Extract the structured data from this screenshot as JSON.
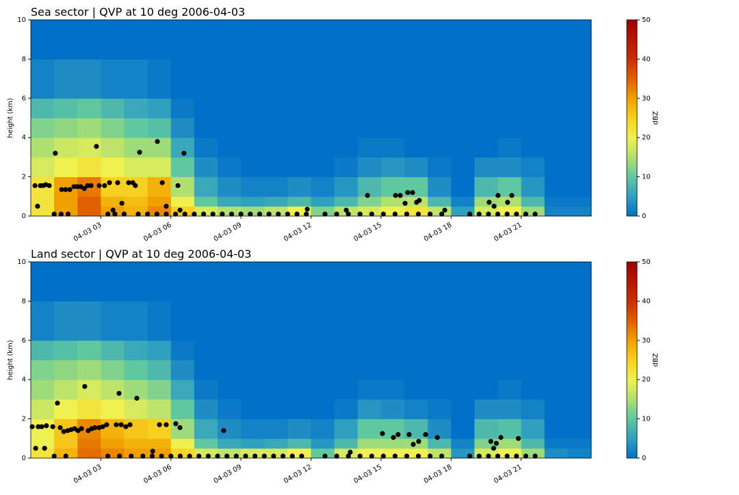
{
  "chart_data": [
    {
      "type": "heatmap",
      "title": "Sea sector  |  QVP at 10 deg 2006-04-03",
      "ylabel": "height (km)",
      "xlim": [
        0,
        24
      ],
      "ylim": [
        0,
        10
      ],
      "yticks": [
        0,
        2,
        4,
        6,
        8,
        10
      ],
      "xticks": [
        {
          "value": 3,
          "label": "04-03 03"
        },
        {
          "value": 6,
          "label": "04-03 06"
        },
        {
          "value": 9,
          "label": "04-03 09"
        },
        {
          "value": 12,
          "label": "04-03 12"
        },
        {
          "value": 15,
          "label": "04-03 15"
        },
        {
          "value": 18,
          "label": "04-03 18"
        },
        {
          "value": 21,
          "label": "04-03 21"
        }
      ],
      "x_edges": [
        0,
        1,
        2,
        3,
        4,
        5,
        6,
        7,
        8,
        9,
        10,
        11,
        12,
        13,
        14,
        15,
        16,
        17,
        18,
        19,
        20,
        21,
        22,
        23,
        24
      ],
      "y_edges": [
        0,
        0.5,
        1,
        2,
        3,
        4,
        5,
        6,
        8,
        10
      ],
      "z": [
        [
          22,
          30,
          35,
          30,
          28,
          32,
          25,
          18,
          15,
          14,
          16,
          20,
          12,
          16,
          18,
          20,
          22,
          16,
          5,
          18,
          20,
          14,
          2,
          2
        ],
        [
          22,
          30,
          35,
          28,
          27,
          30,
          20,
          10,
          6,
          5,
          6,
          8,
          5,
          8,
          12,
          15,
          16,
          8,
          2,
          14,
          15,
          8,
          1,
          1
        ],
        [
          22,
          30,
          33,
          25,
          25,
          28,
          15,
          6,
          3,
          2,
          2,
          3,
          2,
          4,
          8,
          10,
          10,
          3,
          0,
          8,
          10,
          4,
          0,
          0
        ],
        [
          18,
          20,
          22,
          20,
          18,
          18,
          10,
          3,
          1,
          0,
          0,
          0,
          0,
          1,
          3,
          4,
          3,
          1,
          0,
          3,
          3,
          2,
          0,
          0
        ],
        [
          15,
          17,
          18,
          16,
          14,
          14,
          6,
          1,
          0,
          0,
          0,
          0,
          0,
          0,
          1,
          1,
          0,
          0,
          0,
          0,
          1,
          0,
          0,
          0
        ],
        [
          12,
          13,
          14,
          12,
          10,
          9,
          3,
          0,
          0,
          0,
          0,
          0,
          0,
          0,
          0,
          0,
          0,
          0,
          0,
          0,
          0,
          0,
          0,
          0
        ],
        [
          8,
          9,
          10,
          8,
          6,
          5,
          1,
          0,
          0,
          0,
          0,
          0,
          0,
          0,
          0,
          0,
          0,
          0,
          0,
          0,
          0,
          0,
          0,
          0
        ],
        [
          2,
          3,
          3,
          2,
          2,
          1,
          0,
          0,
          0,
          0,
          0,
          0,
          0,
          0,
          0,
          0,
          0,
          0,
          0,
          0,
          0,
          0,
          0,
          0
        ],
        [
          0,
          0,
          0,
          0,
          0,
          0,
          0,
          0,
          0,
          0,
          0,
          0,
          0,
          0,
          0,
          0,
          0,
          0,
          0,
          0,
          0,
          0,
          0,
          0
        ]
      ],
      "clim": [
        0,
        50
      ],
      "cticks": [
        0,
        10,
        20,
        30,
        40,
        50
      ],
      "clabel": "dBZ",
      "scatter": {
        "color": "#000000",
        "x": [
          0.18,
          0.29,
          0.41,
          0.53,
          0.64,
          0.79,
          1.05,
          1.32,
          1.49,
          1.67,
          1.85,
          1.99,
          2.14,
          2.29,
          2.43,
          2.58,
          2.81,
          2.93,
          3.16,
          3.37,
          3.52,
          3.72,
          3.9,
          4.19,
          4.37,
          4.48,
          4.66,
          5.42,
          5.63,
          5.8,
          6.3,
          6.39,
          6.56,
          11.84,
          13.51,
          14.42,
          15.62,
          15.82,
          16.03,
          16.14,
          16.35,
          16.52,
          16.64,
          17.73,
          19.63,
          19.84,
          20.01,
          20.42,
          20.6,
          1.0,
          1.3,
          1.6,
          3.3,
          3.6,
          4.0,
          4.6,
          5.0,
          5.4,
          5.8,
          6.2,
          6.6,
          7.0,
          7.4,
          7.8,
          8.2,
          8.6,
          9.0,
          9.4,
          9.8,
          10.2,
          10.6,
          11.0,
          11.4,
          11.8,
          12.6,
          13.1,
          13.6,
          14.1,
          14.6,
          15.1,
          15.6,
          16.1,
          16.6,
          17.1,
          17.6,
          18.8,
          19.2,
          19.6,
          20.0,
          20.4,
          20.8,
          21.2,
          21.6
        ],
        "y": [
          1.55,
          0.5,
          1.55,
          1.55,
          1.6,
          1.55,
          3.2,
          1.35,
          1.35,
          1.35,
          1.5,
          1.5,
          1.5,
          1.4,
          1.55,
          1.55,
          3.55,
          1.55,
          1.55,
          1.7,
          0.3,
          1.7,
          0.65,
          1.7,
          1.7,
          1.55,
          3.25,
          3.8,
          1.7,
          0.5,
          1.55,
          0.3,
          3.2,
          0.35,
          0.3,
          1.05,
          1.05,
          1.05,
          0.65,
          1.2,
          1.2,
          0.7,
          0.8,
          0.3,
          0.7,
          0.5,
          1.05,
          0.7,
          1.05,
          0.1,
          0.1,
          0.1,
          0.1,
          0.1,
          0.1,
          0.1,
          0.1,
          0.1,
          0.1,
          0.1,
          0.1,
          0.1,
          0.1,
          0.1,
          0.1,
          0.1,
          0.1,
          0.1,
          0.1,
          0.1,
          0.1,
          0.1,
          0.1,
          0.1,
          0.1,
          0.1,
          0.1,
          0.1,
          0.1,
          0.1,
          0.1,
          0.1,
          0.1,
          0.1,
          0.1,
          0.1,
          0.1,
          0.1,
          0.1,
          0.1,
          0.1,
          0.1,
          0.1
        ]
      }
    },
    {
      "type": "heatmap",
      "title": "Land sector  |  QVP at 10 deg 2006-04-03",
      "ylabel": "height (km)",
      "xlim": [
        0,
        24
      ],
      "ylim": [
        0,
        10
      ],
      "yticks": [
        0,
        2,
        4,
        6,
        8,
        10
      ],
      "xticks": [
        {
          "value": 3,
          "label": "04-03 03"
        },
        {
          "value": 6,
          "label": "04-03 06"
        },
        {
          "value": 9,
          "label": "04-03 09"
        },
        {
          "value": 12,
          "label": "04-03 12"
        },
        {
          "value": 15,
          "label": "04-03 15"
        },
        {
          "value": 18,
          "label": "04-03 18"
        },
        {
          "value": 21,
          "label": "04-03 21"
        }
      ],
      "x_edges": [
        0,
        1,
        2,
        3,
        4,
        5,
        6,
        7,
        8,
        9,
        10,
        11,
        12,
        13,
        14,
        15,
        16,
        17,
        18,
        19,
        20,
        21,
        22,
        23,
        24
      ],
      "y_edges": [
        0,
        0.5,
        1,
        2,
        3,
        4,
        5,
        6,
        8,
        10
      ],
      "z": [
        [
          22,
          28,
          34,
          32,
          30,
          30,
          24,
          18,
          16,
          18,
          18,
          20,
          10,
          18,
          20,
          20,
          20,
          16,
          4,
          18,
          20,
          14,
          3,
          2
        ],
        [
          20,
          26,
          33,
          30,
          28,
          28,
          20,
          10,
          6,
          5,
          6,
          8,
          4,
          8,
          14,
          14,
          14,
          8,
          2,
          12,
          14,
          8,
          1,
          1
        ],
        [
          20,
          26,
          32,
          28,
          26,
          25,
          14,
          6,
          3,
          2,
          2,
          3,
          2,
          5,
          10,
          10,
          8,
          3,
          0,
          8,
          9,
          5,
          0,
          0
        ],
        [
          17,
          20,
          22,
          20,
          18,
          16,
          10,
          3,
          1,
          0,
          0,
          0,
          0,
          1,
          4,
          3,
          2,
          1,
          0,
          3,
          3,
          2,
          0,
          0
        ],
        [
          14,
          16,
          18,
          16,
          14,
          12,
          6,
          1,
          0,
          0,
          0,
          0,
          0,
          0,
          1,
          1,
          0,
          0,
          0,
          0,
          1,
          0,
          0,
          0
        ],
        [
          12,
          13,
          14,
          12,
          10,
          8,
          3,
          0,
          0,
          0,
          0,
          0,
          0,
          0,
          0,
          0,
          0,
          0,
          0,
          0,
          0,
          0,
          0,
          0
        ],
        [
          8,
          9,
          10,
          8,
          6,
          5,
          1,
          0,
          0,
          0,
          0,
          0,
          0,
          0,
          0,
          0,
          0,
          0,
          0,
          0,
          0,
          0,
          0,
          0
        ],
        [
          2,
          3,
          3,
          2,
          2,
          1,
          0,
          0,
          0,
          0,
          0,
          0,
          0,
          0,
          0,
          0,
          0,
          0,
          0,
          0,
          0,
          0,
          0,
          0
        ],
        [
          0,
          0,
          0,
          0,
          0,
          0,
          0,
          0,
          0,
          0,
          0,
          0,
          0,
          0,
          0,
          0,
          0,
          0,
          0,
          0,
          0,
          0,
          0,
          0
        ]
      ],
      "clim": [
        0,
        50
      ],
      "cticks": [
        0,
        10,
        20,
        30,
        40,
        50
      ],
      "clabel": "dBZ",
      "scatter": {
        "color": "#000000",
        "x": [
          0.06,
          0.21,
          0.32,
          0.47,
          0.59,
          0.67,
          0.94,
          1.14,
          1.26,
          1.41,
          1.58,
          1.73,
          1.88,
          2.02,
          2.17,
          2.31,
          2.46,
          2.61,
          2.75,
          2.93,
          3.08,
          3.25,
          3.66,
          3.78,
          3.87,
          4.07,
          4.25,
          4.54,
          5.22,
          5.51,
          5.8,
          6.21,
          6.39,
          8.26,
          13.68,
          15.06,
          15.53,
          15.73,
          16.2,
          16.38,
          16.61,
          16.91,
          17.41,
          19.7,
          19.82,
          19.94,
          20.13,
          20.88,
          1.0,
          1.5,
          3.3,
          3.8,
          4.3,
          4.8,
          5.2,
          5.6,
          6.0,
          6.4,
          6.8,
          7.2,
          7.6,
          8.0,
          8.4,
          8.8,
          9.2,
          9.6,
          10.0,
          10.4,
          10.8,
          11.2,
          11.6,
          12.6,
          13.1,
          13.6,
          14.1,
          14.6,
          15.1,
          15.6,
          16.1,
          16.6,
          17.1,
          17.6,
          18.8,
          19.2,
          19.6,
          20.0,
          20.4,
          20.8,
          21.2,
          21.6
        ],
        "y": [
          1.6,
          0.5,
          1.6,
          1.6,
          0.5,
          1.65,
          1.6,
          2.8,
          1.55,
          1.35,
          1.4,
          1.45,
          1.5,
          1.4,
          1.5,
          3.65,
          1.4,
          1.5,
          1.55,
          1.55,
          1.6,
          1.7,
          1.7,
          3.3,
          1.7,
          1.6,
          1.7,
          3.05,
          0.35,
          1.7,
          1.7,
          1.75,
          1.55,
          1.4,
          0.3,
          1.25,
          1.05,
          1.2,
          1.2,
          0.7,
          0.85,
          1.2,
          1.05,
          0.85,
          0.5,
          0.75,
          1.05,
          1.0,
          0.1,
          0.1,
          0.1,
          0.1,
          0.1,
          0.1,
          0.1,
          0.1,
          0.1,
          0.1,
          0.1,
          0.1,
          0.1,
          0.1,
          0.1,
          0.1,
          0.1,
          0.1,
          0.1,
          0.1,
          0.1,
          0.1,
          0.1,
          0.1,
          0.1,
          0.1,
          0.1,
          0.1,
          0.1,
          0.1,
          0.1,
          0.1,
          0.1,
          0.1,
          0.1,
          0.1,
          0.1,
          0.1,
          0.1,
          0.1,
          0.1,
          0.1
        ]
      }
    }
  ]
}
